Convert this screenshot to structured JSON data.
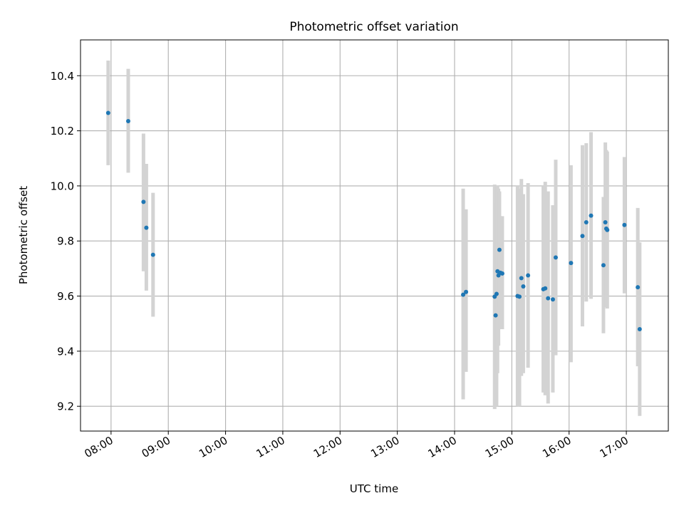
{
  "chart_data": {
    "type": "scatter",
    "title": "Photometric offset variation",
    "xlabel": "UTC time",
    "ylabel": "Photometric offset",
    "xlim": [
      "07:28",
      "17:44"
    ],
    "ylim": [
      9.11,
      10.53
    ],
    "x_ticks": [
      "08:00",
      "09:00",
      "10:00",
      "11:00",
      "12:00",
      "13:00",
      "14:00",
      "15:00",
      "16:00",
      "17:00"
    ],
    "y_ticks": [
      9.2,
      9.4,
      9.6,
      9.8,
      10.0,
      10.2,
      10.4
    ],
    "y_tick_labels": [
      "9.2",
      "9.4",
      "9.6",
      "9.8",
      "10.0",
      "10.2",
      "10.4"
    ],
    "grid": true,
    "colors": {
      "point": "#1f77b4",
      "error_bar": "#d3d3d3",
      "grid": "#b0b0b0"
    },
    "points": [
      {
        "x": "07:57",
        "y": 10.265,
        "lo": 10.075,
        "hi": 10.455
      },
      {
        "x": "08:18",
        "y": 10.235,
        "lo": 10.048,
        "hi": 10.425
      },
      {
        "x": "08:34",
        "y": 9.942,
        "lo": 9.69,
        "hi": 10.19
      },
      {
        "x": "08:37",
        "y": 9.848,
        "lo": 9.62,
        "hi": 10.08
      },
      {
        "x": "08:44",
        "y": 9.75,
        "lo": 9.525,
        "hi": 9.975
      },
      {
        "x": "14:09",
        "y": 9.605,
        "lo": 9.225,
        "hi": 9.99
      },
      {
        "x": "14:12",
        "y": 9.615,
        "lo": 9.325,
        "hi": 9.915
      },
      {
        "x": "14:42",
        "y": 9.598,
        "lo": 9.19,
        "hi": 10.005
      },
      {
        "x": "14:43",
        "y": 9.53,
        "lo": 9.28,
        "hi": 9.94
      },
      {
        "x": "14:44",
        "y": 9.608,
        "lo": 9.2,
        "hi": 10.0
      },
      {
        "x": "14:45",
        "y": 9.69,
        "lo": 9.32,
        "hi": 10.0
      },
      {
        "x": "14:46",
        "y": 9.675,
        "lo": 9.42,
        "hi": 9.99
      },
      {
        "x": "14:47",
        "y": 9.768,
        "lo": 9.56,
        "hi": 9.98
      },
      {
        "x": "14:48",
        "y": 9.685,
        "lo": 9.48,
        "hi": 9.89
      },
      {
        "x": "14:50",
        "y": 9.682,
        "lo": 9.48,
        "hi": 9.89
      },
      {
        "x": "15:06",
        "y": 9.6,
        "lo": 9.2,
        "hi": 10.0
      },
      {
        "x": "15:08",
        "y": 9.598,
        "lo": 9.2,
        "hi": 9.99
      },
      {
        "x": "15:10",
        "y": 9.665,
        "lo": 9.31,
        "hi": 10.025
      },
      {
        "x": "15:12",
        "y": 9.635,
        "lo": 9.32,
        "hi": 9.97
      },
      {
        "x": "15:17",
        "y": 9.675,
        "lo": 9.34,
        "hi": 10.01
      },
      {
        "x": "15:33",
        "y": 9.625,
        "lo": 9.25,
        "hi": 10.0
      },
      {
        "x": "15:35",
        "y": 9.628,
        "lo": 9.24,
        "hi": 10.015
      },
      {
        "x": "15:38",
        "y": 9.592,
        "lo": 9.21,
        "hi": 9.98
      },
      {
        "x": "15:43",
        "y": 9.588,
        "lo": 9.25,
        "hi": 9.93
      },
      {
        "x": "15:46",
        "y": 9.74,
        "lo": 9.385,
        "hi": 10.095
      },
      {
        "x": "16:02",
        "y": 9.72,
        "lo": 9.36,
        "hi": 10.075
      },
      {
        "x": "16:14",
        "y": 9.818,
        "lo": 9.49,
        "hi": 10.148
      },
      {
        "x": "16:18",
        "y": 9.868,
        "lo": 9.58,
        "hi": 10.155
      },
      {
        "x": "16:23",
        "y": 9.892,
        "lo": 9.59,
        "hi": 10.195
      },
      {
        "x": "16:36",
        "y": 9.712,
        "lo": 9.465,
        "hi": 9.96
      },
      {
        "x": "16:38",
        "y": 9.868,
        "lo": 9.575,
        "hi": 10.158
      },
      {
        "x": "16:39",
        "y": 9.845,
        "lo": 9.56,
        "hi": 10.13
      },
      {
        "x": "16:40",
        "y": 9.84,
        "lo": 9.555,
        "hi": 10.125
      },
      {
        "x": "16:58",
        "y": 9.858,
        "lo": 9.61,
        "hi": 10.105
      },
      {
        "x": "17:12",
        "y": 9.632,
        "lo": 9.345,
        "hi": 9.92
      },
      {
        "x": "17:14",
        "y": 9.48,
        "lo": 9.165,
        "hi": 9.795
      }
    ]
  }
}
